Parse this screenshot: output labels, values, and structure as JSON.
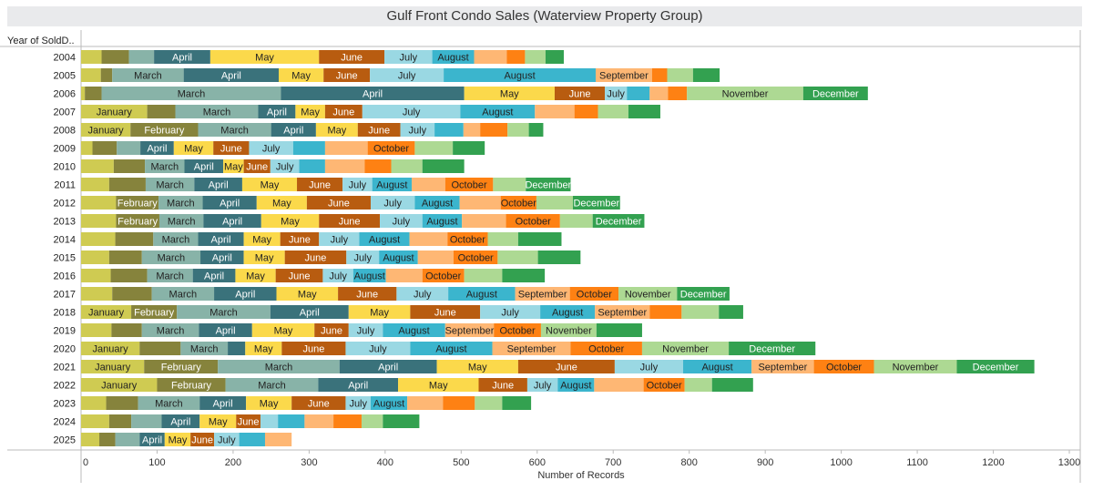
{
  "chart_data": {
    "type": "bar",
    "orientation": "horizontal-stacked",
    "title": "Gulf Front Condo Sales (Waterview Property Group)",
    "ylabel": "Year of SoldD..",
    "xlabel": "Number of Records",
    "xlim": [
      0,
      1300
    ],
    "xticks": [
      0,
      100,
      200,
      300,
      400,
      500,
      600,
      700,
      800,
      900,
      1000,
      1100,
      1200,
      1300
    ],
    "months": [
      "January",
      "February",
      "March",
      "April",
      "May",
      "June",
      "July",
      "August",
      "September",
      "October",
      "November",
      "December"
    ],
    "colors": [
      "#cfcb52",
      "#86833c",
      "#88b3a8",
      "#3a727b",
      "#fbd94b",
      "#b85c10",
      "#9ad8e3",
      "#3bb5cd",
      "#feb774",
      "#fe8113",
      "#add993",
      "#33a150"
    ],
    "label_colors": [
      "#222",
      "#fff",
      "#222",
      "#fff",
      "#222",
      "#fff",
      "#222",
      "#222",
      "#222",
      "#222",
      "#222",
      "#fff"
    ],
    "categories": [
      "2004",
      "2005",
      "2006",
      "2007",
      "2008",
      "2009",
      "2010",
      "2011",
      "2012",
      "2013",
      "2014",
      "2015",
      "2016",
      "2017",
      "2018",
      "2019",
      "2020",
      "2021",
      "2022",
      "2023",
      "2024",
      "2025"
    ],
    "series": [
      {
        "year": "2004",
        "values": [
          27,
          36,
          33,
          74,
          143,
          86,
          63,
          55,
          43,
          24,
          27,
          24
        ],
        "labels": [
          false,
          false,
          false,
          true,
          true,
          true,
          true,
          true,
          false,
          false,
          false,
          false
        ]
      },
      {
        "year": "2005",
        "values": [
          26,
          15,
          94,
          125,
          59,
          61,
          97,
          200,
          74,
          20,
          34,
          35
        ],
        "labels": [
          false,
          false,
          true,
          true,
          true,
          true,
          true,
          true,
          true,
          false,
          false,
          false
        ]
      },
      {
        "year": "2006",
        "values": [
          5,
          22,
          236,
          241,
          119,
          66,
          29,
          30,
          24,
          25,
          153,
          85
        ],
        "labels": [
          false,
          false,
          true,
          true,
          true,
          true,
          true,
          false,
          false,
          false,
          true,
          true
        ]
      },
      {
        "year": "2007",
        "values": [
          87,
          37,
          109,
          49,
          39,
          49,
          129,
          98,
          52,
          31,
          40,
          42
        ],
        "labels": [
          true,
          false,
          true,
          true,
          true,
          true,
          true,
          true,
          false,
          false,
          false,
          false
        ]
      },
      {
        "year": "2008",
        "values": [
          65,
          89,
          96,
          59,
          55,
          56,
          45,
          38,
          22,
          36,
          28,
          19
        ],
        "labels": [
          true,
          true,
          true,
          true,
          true,
          true,
          true,
          false,
          false,
          false,
          false,
          false
        ]
      },
      {
        "year": "2009",
        "values": [
          15,
          32,
          31,
          44,
          52,
          47,
          58,
          42,
          56,
          62,
          50,
          42
        ],
        "labels": [
          false,
          false,
          false,
          true,
          true,
          true,
          true,
          false,
          false,
          true,
          false,
          false
        ]
      },
      {
        "year": "2010",
        "values": [
          43,
          41,
          52,
          51,
          27,
          35,
          38,
          34,
          52,
          35,
          41,
          55
        ],
        "labels": [
          false,
          false,
          true,
          true,
          true,
          true,
          true,
          false,
          false,
          false,
          false,
          false
        ]
      },
      {
        "year": "2011",
        "values": [
          37,
          48,
          64,
          63,
          72,
          60,
          39,
          52,
          44,
          63,
          43,
          59
        ],
        "labels": [
          false,
          false,
          true,
          true,
          true,
          true,
          true,
          true,
          false,
          true,
          false,
          true
        ]
      },
      {
        "year": "2012",
        "values": [
          46,
          56,
          58,
          71,
          66,
          84,
          58,
          59,
          54,
          47,
          48,
          62
        ],
        "labels": [
          false,
          true,
          true,
          true,
          true,
          true,
          true,
          true,
          false,
          true,
          false,
          true
        ]
      },
      {
        "year": "2013",
        "values": [
          46,
          57,
          58,
          76,
          76,
          80,
          56,
          52,
          58,
          71,
          43,
          68
        ],
        "labels": [
          false,
          true,
          true,
          true,
          true,
          true,
          true,
          true,
          false,
          true,
          false,
          true
        ]
      },
      {
        "year": "2014",
        "values": [
          45,
          50,
          59,
          60,
          48,
          51,
          53,
          66,
          50,
          53,
          40,
          57
        ],
        "labels": [
          false,
          false,
          true,
          true,
          true,
          true,
          true,
          true,
          false,
          true,
          false,
          false
        ]
      },
      {
        "year": "2015",
        "values": [
          37,
          43,
          77,
          57,
          54,
          81,
          43,
          51,
          47,
          58,
          53,
          56
        ],
        "labels": [
          false,
          false,
          true,
          true,
          true,
          true,
          true,
          true,
          false,
          true,
          false,
          false
        ]
      },
      {
        "year": "2016",
        "values": [
          39,
          48,
          60,
          56,
          53,
          62,
          40,
          43,
          48,
          55,
          50,
          56
        ],
        "labels": [
          false,
          false,
          true,
          true,
          true,
          true,
          true,
          true,
          false,
          true,
          false,
          false
        ]
      },
      {
        "year": "2017",
        "values": [
          41,
          52,
          82,
          82,
          81,
          77,
          68,
          88,
          72,
          64,
          77,
          69
        ],
        "labels": [
          false,
          false,
          true,
          true,
          true,
          true,
          true,
          true,
          true,
          true,
          true,
          true
        ]
      },
      {
        "year": "2018",
        "values": [
          66,
          60,
          123,
          103,
          81,
          92,
          79,
          72,
          72,
          42,
          49,
          32
        ],
        "labels": [
          true,
          true,
          true,
          true,
          true,
          true,
          true,
          true,
          true,
          false,
          false,
          false
        ]
      },
      {
        "year": "2019",
        "values": [
          40,
          40,
          75,
          70,
          82,
          45,
          45,
          82,
          64,
          62,
          73,
          60
        ],
        "labels": [
          false,
          false,
          true,
          true,
          true,
          true,
          true,
          true,
          true,
          true,
          true,
          false
        ]
      },
      {
        "year": "2020",
        "values": [
          77,
          54,
          62,
          23,
          48,
          84,
          85,
          108,
          103,
          94,
          114,
          114
        ],
        "labels": [
          true,
          false,
          true,
          false,
          true,
          true,
          true,
          true,
          true,
          true,
          true,
          true
        ]
      },
      {
        "year": "2021",
        "values": [
          83,
          97,
          160,
          128,
          107,
          127,
          90,
          90,
          82,
          79,
          109,
          102
        ],
        "labels": [
          true,
          true,
          true,
          true,
          true,
          true,
          true,
          true,
          true,
          true,
          true,
          true
        ]
      },
      {
        "year": "2022",
        "values": [
          100,
          90,
          122,
          105,
          106,
          64,
          40,
          48,
          65,
          54,
          36,
          54
        ],
        "labels": [
          true,
          true,
          true,
          true,
          true,
          true,
          true,
          true,
          false,
          true,
          false,
          false
        ]
      },
      {
        "year": "2023",
        "values": [
          33,
          42,
          81,
          61,
          60,
          71,
          33,
          48,
          47,
          42,
          36,
          38
        ],
        "labels": [
          false,
          false,
          true,
          true,
          true,
          true,
          true,
          true,
          false,
          false,
          false,
          false
        ]
      },
      {
        "year": "2024",
        "values": [
          37,
          29,
          40,
          50,
          48,
          32,
          23,
          35,
          38,
          37,
          28,
          48
        ],
        "labels": [
          false,
          false,
          false,
          true,
          true,
          true,
          false,
          false,
          false,
          false,
          false,
          false
        ]
      },
      {
        "year": "2025",
        "values": [
          24,
          21,
          32,
          33,
          34,
          31,
          33,
          34,
          35,
          0,
          0,
          0
        ],
        "labels": [
          false,
          false,
          false,
          true,
          true,
          true,
          true,
          false,
          false,
          false,
          false,
          false
        ]
      }
    ]
  }
}
